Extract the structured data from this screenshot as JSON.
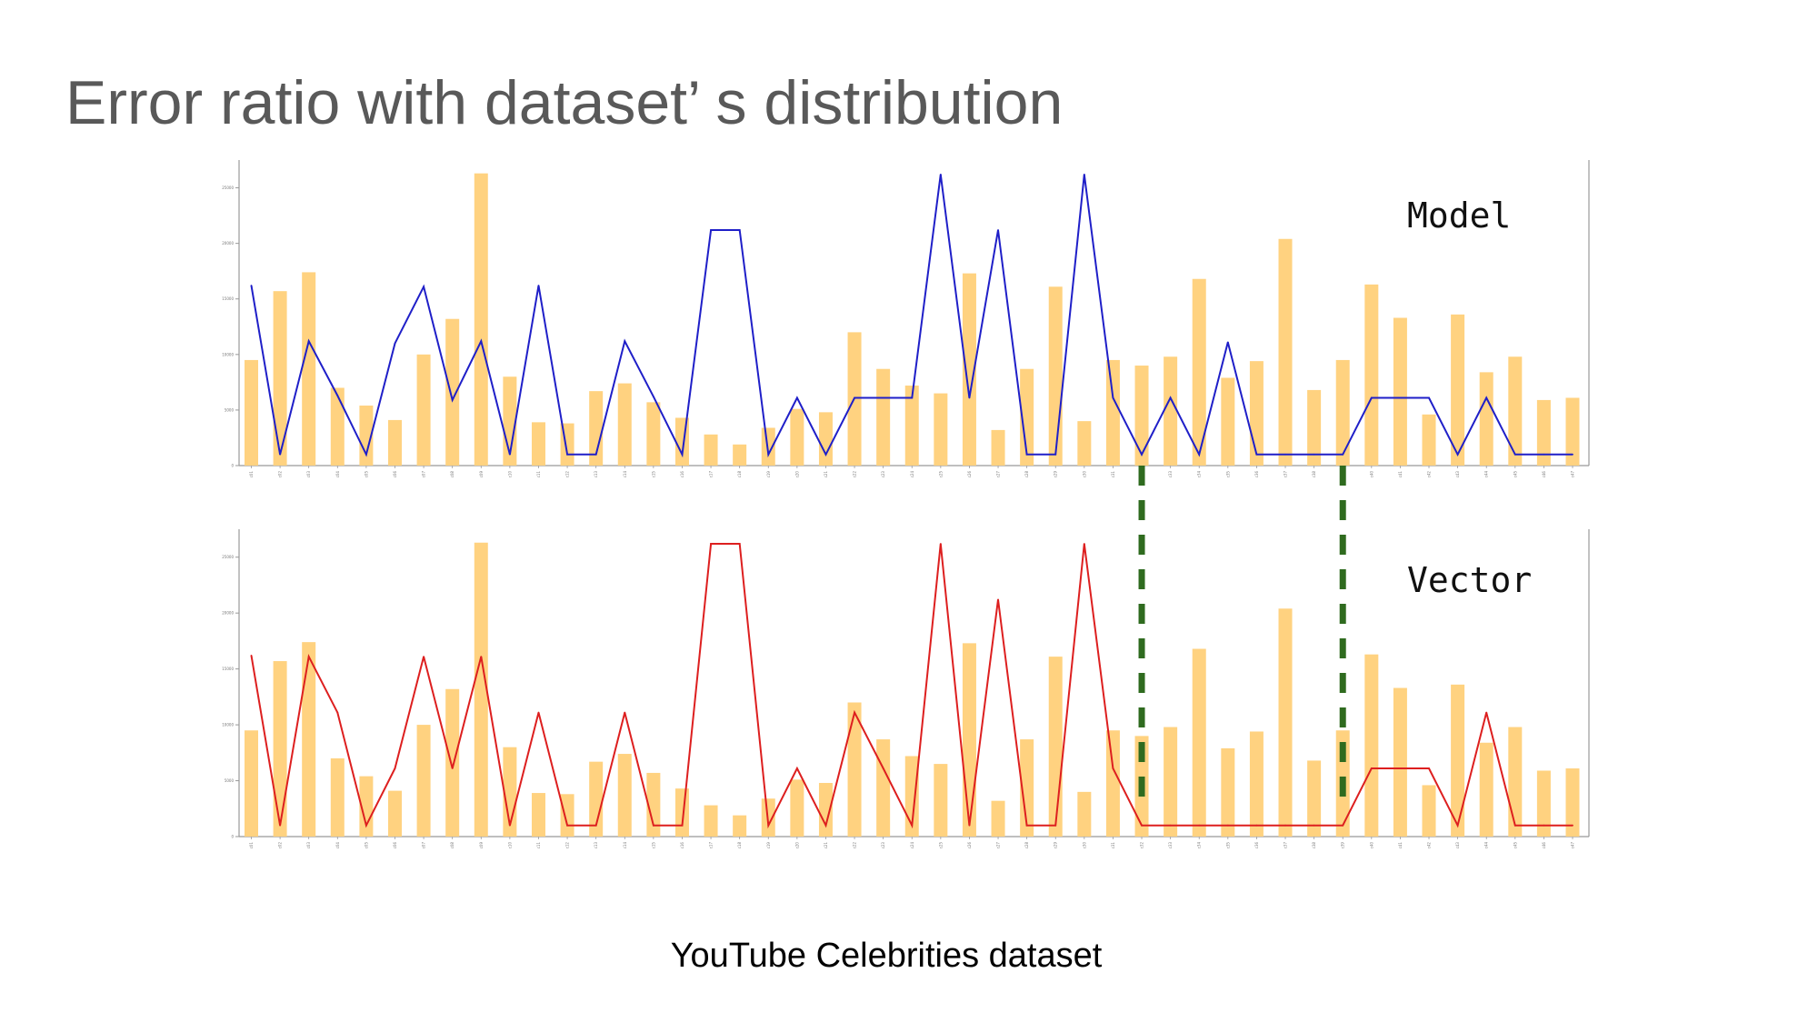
{
  "slide": {
    "title": "Error ratio with dataset’ s distribution",
    "caption": "YouTube Celebrities dataset"
  },
  "colors": {
    "bar": "#ffd280",
    "model_line": "#1f1fc8",
    "vector_line": "#dd1f1f",
    "divider": "#2f6b1f",
    "axis": "#999999"
  },
  "chart_data": [
    {
      "type": "bar",
      "panel_label": "Model",
      "categories": [
        "c01",
        "c02",
        "c03",
        "c04",
        "c05",
        "c06",
        "c07",
        "c08",
        "c09",
        "c10",
        "c11",
        "c12",
        "c13",
        "c14",
        "c15",
        "c16",
        "c17",
        "c18",
        "c19",
        "c20",
        "c21",
        "c22",
        "c23",
        "c24",
        "c25",
        "c26",
        "c27",
        "c28",
        "c29",
        "c30",
        "c31",
        "c32",
        "c33",
        "c34",
        "c35",
        "c36",
        "c37",
        "c38",
        "c39",
        "c40",
        "c41",
        "c42",
        "c43",
        "c44",
        "c45",
        "c46",
        "c47"
      ],
      "ylim": [
        0,
        27500
      ],
      "yticks": [
        0,
        5000,
        10000,
        15000,
        20000,
        25000
      ],
      "series": [
        {
          "kind": "bar",
          "values": [
            9500,
            15700,
            17400,
            7000,
            5400,
            4100,
            10000,
            13200,
            26300,
            8000,
            3900,
            3800,
            6700,
            7400,
            5700,
            4300,
            2800,
            1900,
            3400,
            5100,
            4800,
            12000,
            8700,
            7200,
            6500,
            17300,
            3200,
            8700,
            16100,
            4000,
            9500,
            9000,
            9800,
            16800,
            7900,
            9400,
            20400,
            6800,
            9500,
            16300,
            13300,
            4600,
            13600,
            8400,
            9800,
            5900,
            6100
          ]
        },
        {
          "kind": "line",
          "values": [
            16200,
            1000,
            11200,
            6300,
            1000,
            11000,
            16100,
            5900,
            11200,
            1000,
            16200,
            1000,
            1000,
            11200,
            6200,
            1000,
            21200,
            21200,
            1000,
            6100,
            1000,
            6100,
            6100,
            6100,
            26200,
            6100,
            21200,
            1000,
            1000,
            26200,
            6100,
            1000,
            6100,
            1000,
            11100,
            1000,
            1000,
            1000,
            1000,
            6100,
            6100,
            6100,
            1000,
            6100,
            1000,
            1000,
            1000
          ]
        }
      ]
    },
    {
      "type": "bar",
      "panel_label": "Vector",
      "categories": [
        "c01",
        "c02",
        "c03",
        "c04",
        "c05",
        "c06",
        "c07",
        "c08",
        "c09",
        "c10",
        "c11",
        "c12",
        "c13",
        "c14",
        "c15",
        "c16",
        "c17",
        "c18",
        "c19",
        "c20",
        "c21",
        "c22",
        "c23",
        "c24",
        "c25",
        "c26",
        "c27",
        "c28",
        "c29",
        "c30",
        "c31",
        "c32",
        "c33",
        "c34",
        "c35",
        "c36",
        "c37",
        "c38",
        "c39",
        "c40",
        "c41",
        "c42",
        "c43",
        "c44",
        "c45",
        "c46",
        "c47"
      ],
      "ylim": [
        0,
        27500
      ],
      "yticks": [
        0,
        5000,
        10000,
        15000,
        20000,
        25000
      ],
      "series": [
        {
          "kind": "bar",
          "values": [
            9500,
            15700,
            17400,
            7000,
            5400,
            4100,
            10000,
            13200,
            26300,
            8000,
            3900,
            3800,
            6700,
            7400,
            5700,
            4300,
            2800,
            1900,
            3400,
            5100,
            4800,
            12000,
            8700,
            7200,
            6500,
            17300,
            3200,
            8700,
            16100,
            4000,
            9500,
            9000,
            9800,
            16800,
            7900,
            9400,
            20400,
            6800,
            9500,
            16300,
            13300,
            4600,
            13600,
            8400,
            9800,
            5900,
            6100
          ]
        },
        {
          "kind": "line",
          "values": [
            16200,
            1000,
            16100,
            11100,
            1000,
            6100,
            16100,
            6100,
            16100,
            1000,
            11100,
            1000,
            1000,
            11100,
            1000,
            1000,
            26200,
            26200,
            1000,
            6100,
            1000,
            11100,
            6100,
            1000,
            26200,
            1000,
            21200,
            1000,
            1000,
            26200,
            6100,
            1000,
            1000,
            1000,
            1000,
            1000,
            1000,
            1000,
            1000,
            6100,
            6100,
            6100,
            1000,
            11100,
            1000,
            1000,
            1000
          ]
        }
      ],
      "annotations": {
        "divider_categories": [
          31,
          38
        ]
      }
    }
  ]
}
